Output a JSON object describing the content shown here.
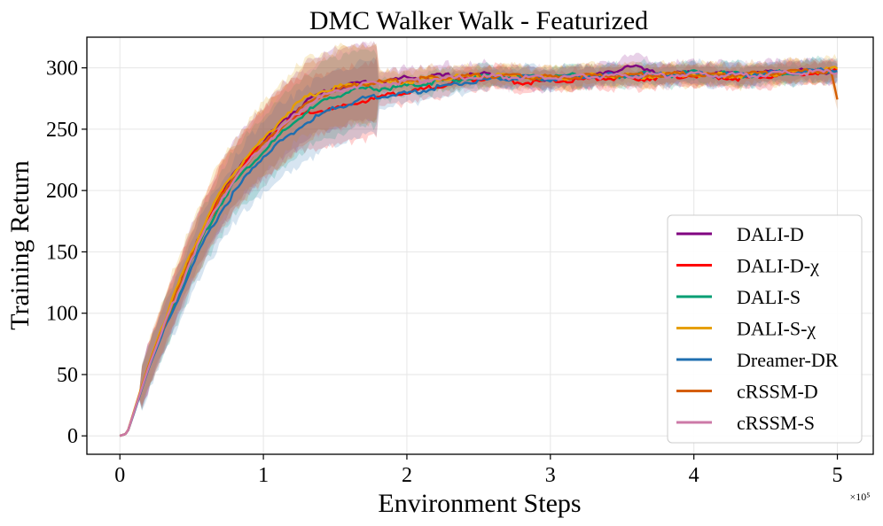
{
  "chart_data": {
    "type": "line",
    "title": "DMC Walker Walk - Featurized",
    "xlabel": "Environment Steps",
    "ylabel": "Training Return",
    "x_multiplier_label": "×10⁵",
    "xlim": [
      -0.23,
      5.25
    ],
    "ylim": [
      -15,
      325
    ],
    "xticks": [
      0,
      1,
      2,
      3,
      4,
      5
    ],
    "xtick_labels": [
      "0",
      "1",
      "2",
      "3",
      "4",
      "5"
    ],
    "yticks": [
      0,
      50,
      100,
      150,
      200,
      250,
      300
    ],
    "ytick_labels": [
      "0",
      "50",
      "100",
      "150",
      "200",
      "250",
      "300"
    ],
    "grid": true,
    "legend_position": "lower-right",
    "series": [
      {
        "name": "DALI-D",
        "color": "#800080",
        "x": [
          0,
          0.05,
          0.1,
          0.2,
          0.3,
          0.4,
          0.5,
          0.6,
          0.7,
          0.8,
          0.9,
          1.0,
          1.1,
          1.2,
          1.3,
          1.4,
          1.5,
          1.6,
          1.7,
          1.8,
          1.9,
          2.0,
          2.2,
          2.4,
          2.6,
          2.8,
          3.0,
          3.2,
          3.4,
          3.55,
          3.7,
          3.9,
          4.1,
          4.3,
          4.5,
          4.7,
          4.9,
          5.0
        ],
        "values": [
          0,
          2,
          20,
          57,
          88,
          118,
          148,
          173,
          195,
          214,
          228,
          240,
          252,
          263,
          273,
          279,
          284,
          286,
          288,
          289,
          290,
          292,
          293,
          294,
          295,
          292,
          291,
          293,
          295,
          303,
          296,
          295,
          296,
          294,
          296,
          298,
          297,
          298
        ]
      },
      {
        "name": "DALI-D-χ",
        "color": "#ff0000",
        "x": [
          0,
          0.05,
          0.1,
          0.2,
          0.3,
          0.4,
          0.5,
          0.6,
          0.7,
          0.8,
          0.9,
          1.0,
          1.1,
          1.2,
          1.3,
          1.4,
          1.5,
          1.6,
          1.7,
          1.8,
          1.9,
          2.0,
          2.2,
          2.4,
          2.6,
          2.8,
          3.0,
          3.2,
          3.4,
          3.6,
          3.8,
          4.0,
          4.2,
          4.4,
          4.6,
          4.8,
          5.0
        ],
        "values": [
          0,
          2,
          20,
          57,
          88,
          117,
          146,
          172,
          194,
          212,
          226,
          238,
          250,
          258,
          263,
          265,
          266,
          270,
          273,
          275,
          280,
          279,
          285,
          290,
          293,
          288,
          289,
          290,
          292,
          291,
          293,
          294,
          292,
          291,
          295,
          296,
          297
        ]
      },
      {
        "name": "DALI-S",
        "color": "#009e73",
        "x": [
          0,
          0.05,
          0.1,
          0.2,
          0.3,
          0.4,
          0.5,
          0.6,
          0.7,
          0.8,
          0.9,
          1.0,
          1.1,
          1.2,
          1.3,
          1.4,
          1.5,
          1.6,
          1.7,
          1.8,
          1.9,
          2.0,
          2.2,
          2.4,
          2.6,
          2.8,
          3.0,
          3.2,
          3.4,
          3.6,
          3.8,
          4.0,
          4.2,
          4.4,
          4.6,
          4.8,
          5.0
        ],
        "values": [
          0,
          2,
          20,
          56,
          86,
          114,
          142,
          167,
          189,
          207,
          220,
          232,
          243,
          254,
          264,
          271,
          277,
          281,
          283,
          283,
          284,
          285,
          289,
          291,
          293,
          292,
          292,
          294,
          293,
          295,
          294,
          296,
          295,
          294,
          296,
          297,
          298
        ]
      },
      {
        "name": "DALI-S-χ",
        "color": "#e69f00",
        "x": [
          0,
          0.05,
          0.1,
          0.2,
          0.3,
          0.4,
          0.5,
          0.6,
          0.7,
          0.8,
          0.9,
          1.0,
          1.1,
          1.2,
          1.3,
          1.4,
          1.5,
          1.6,
          1.7,
          1.8,
          1.9,
          2.0,
          2.2,
          2.4,
          2.6,
          2.8,
          3.0,
          3.2,
          3.4,
          3.6,
          3.8,
          4.0,
          4.2,
          4.4,
          4.6,
          4.8,
          5.0
        ],
        "values": [
          0,
          2,
          21,
          58,
          91,
          121,
          150,
          176,
          198,
          216,
          230,
          242,
          255,
          267,
          276,
          281,
          284,
          286,
          288,
          288,
          288,
          289,
          291,
          293,
          294,
          293,
          292,
          293,
          294,
          293,
          294,
          295,
          294,
          293,
          296,
          297,
          299
        ]
      },
      {
        "name": "Dreamer-DR",
        "color": "#1f6fb0",
        "x": [
          0,
          0.05,
          0.1,
          0.2,
          0.3,
          0.4,
          0.5,
          0.6,
          0.7,
          0.8,
          0.9,
          1.0,
          1.1,
          1.2,
          1.3,
          1.4,
          1.5,
          1.6,
          1.7,
          1.8,
          1.9,
          2.0,
          2.2,
          2.4,
          2.6,
          2.8,
          3.0,
          3.2,
          3.4,
          3.6,
          3.8,
          4.0,
          4.2,
          4.4,
          4.6,
          4.8,
          5.0
        ],
        "values": [
          0,
          2,
          19,
          55,
          84,
          110,
          137,
          161,
          182,
          199,
          214,
          228,
          238,
          247,
          255,
          262,
          267,
          271,
          275,
          277,
          278,
          279,
          284,
          288,
          291,
          292,
          291,
          293,
          294,
          294,
          295,
          295,
          294,
          295,
          296,
          297,
          298
        ]
      },
      {
        "name": "cRSSM-D",
        "color": "#d55e00",
        "x": [
          0,
          0.05,
          0.1,
          0.2,
          0.3,
          0.4,
          0.5,
          0.6,
          0.7,
          0.8,
          0.9,
          1.0,
          1.1,
          1.2,
          1.3,
          1.4,
          1.5,
          1.6,
          1.7,
          1.8,
          1.9,
          2.0,
          2.2,
          2.4,
          2.6,
          2.8,
          3.0,
          3.2,
          3.4,
          3.6,
          3.8,
          4.0,
          4.2,
          4.4,
          4.6,
          4.8,
          4.95,
          5.0
        ],
        "values": [
          0,
          2,
          20,
          57,
          88,
          117,
          146,
          172,
          193,
          211,
          225,
          237,
          249,
          260,
          270,
          277,
          282,
          285,
          287,
          288,
          289,
          290,
          292,
          293,
          294,
          293,
          292,
          293,
          294,
          294,
          295,
          295,
          294,
          295,
          296,
          297,
          298,
          274
        ]
      },
      {
        "name": "cRSSM-S",
        "color": "#cc79a7",
        "x": [
          0,
          0.05,
          0.1,
          0.2,
          0.3,
          0.4,
          0.5,
          0.6,
          0.7,
          0.8,
          0.9,
          1.0,
          1.1,
          1.2,
          1.3,
          1.4,
          1.5,
          1.6,
          1.7,
          1.8,
          1.9,
          2.0,
          2.2,
          2.4,
          2.6,
          2.8,
          3.0,
          3.2,
          3.4,
          3.6,
          3.8,
          4.0,
          4.2,
          4.4,
          4.6,
          4.8,
          5.0
        ],
        "values": [
          0,
          2,
          20,
          56,
          87,
          116,
          145,
          170,
          192,
          210,
          224,
          236,
          248,
          259,
          269,
          276,
          281,
          284,
          286,
          287,
          288,
          289,
          291,
          292,
          293,
          292,
          292,
          293,
          293,
          294,
          294,
          295,
          294,
          294,
          296,
          296,
          297
        ]
      }
    ]
  }
}
